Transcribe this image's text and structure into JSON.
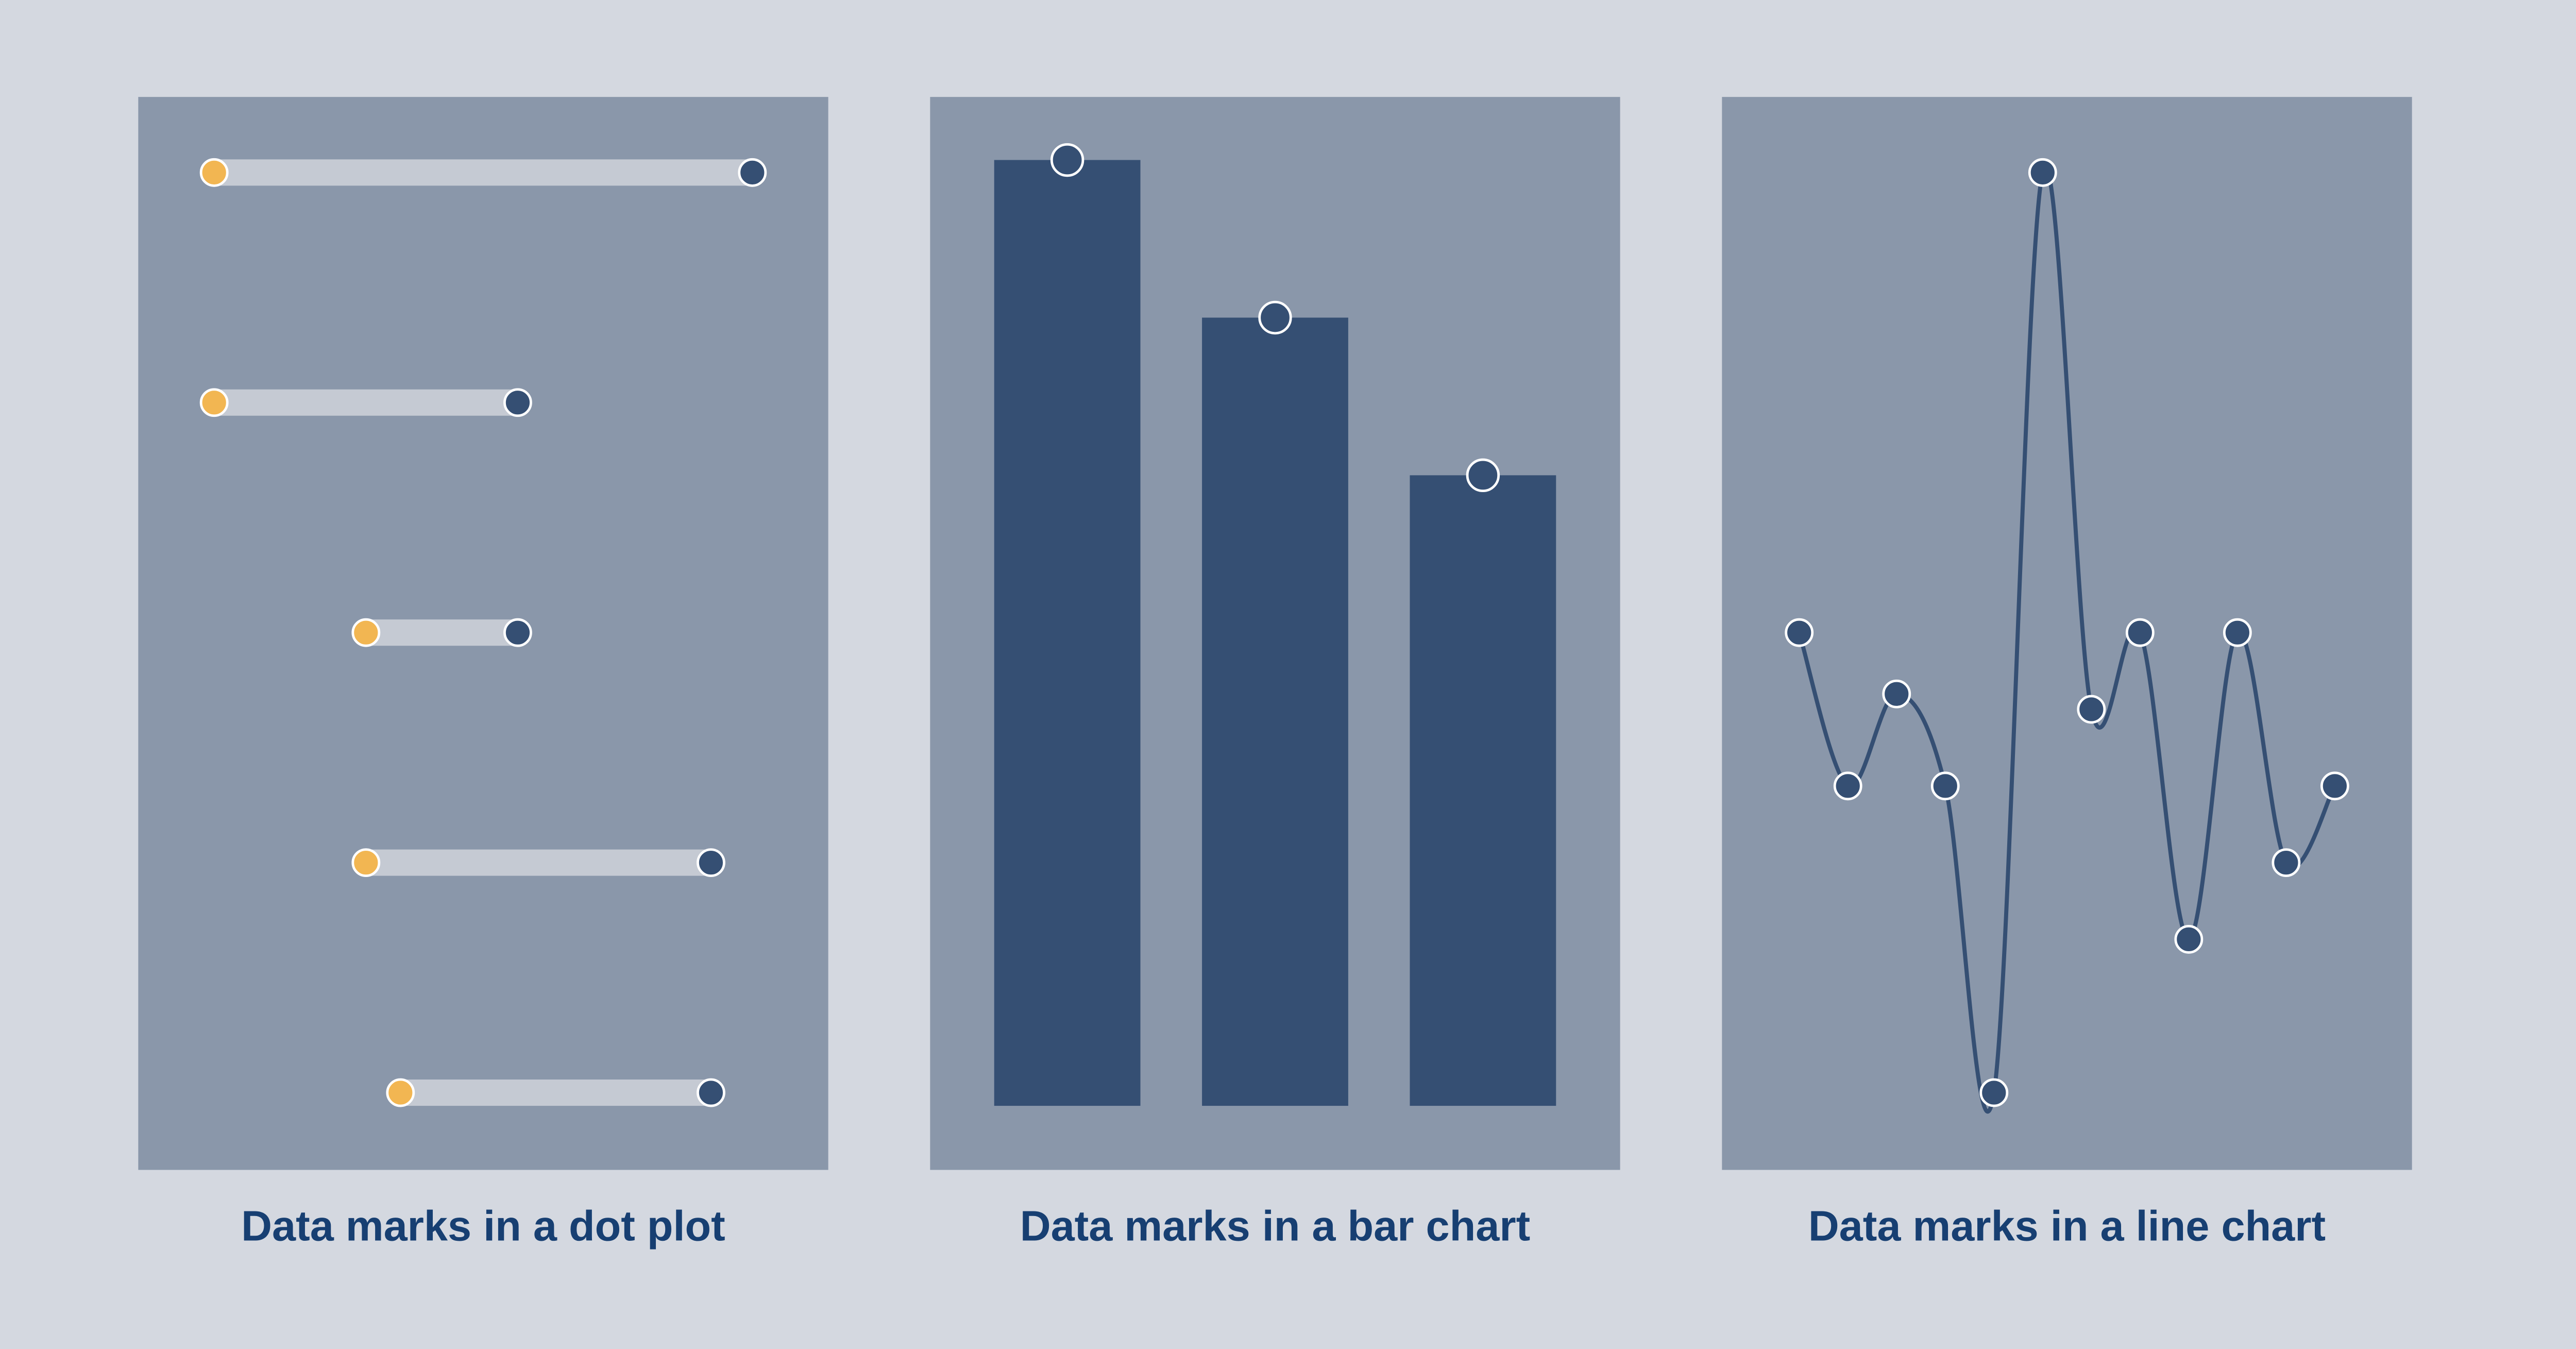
{
  "colors": {
    "background": "#d4d8e0",
    "panel": "#8a97aa",
    "mark": "#354f73",
    "start_dot": "#f2b652",
    "range_bar": "#c5cad3",
    "title": "#173f72",
    "outline": "#ffffff"
  },
  "panels": [
    {
      "title": "Data marks in a dot plot"
    },
    {
      "title": "Data marks in a bar chart"
    },
    {
      "title": "Data marks in a line chart"
    }
  ],
  "chart_data": [
    {
      "type": "dot-range",
      "rows": [
        {
          "start": 11,
          "end": 89
        },
        {
          "start": 11,
          "end": 55
        },
        {
          "start": 33,
          "end": 55
        },
        {
          "start": 33,
          "end": 83
        },
        {
          "start": 38,
          "end": 83
        }
      ],
      "xlim": [
        0,
        100
      ],
      "axes_shown": false
    },
    {
      "type": "bar",
      "values": [
        6,
        5,
        4
      ],
      "ylim": [
        0,
        6.4
      ],
      "axes_shown": false
    },
    {
      "type": "line",
      "curve": "smooth",
      "values": [
        0,
        -2,
        -0.8,
        -2,
        -6,
        6,
        -1,
        0,
        -4,
        0,
        -3,
        -2
      ],
      "ylim": [
        -6,
        6
      ],
      "axes_shown": false
    }
  ]
}
